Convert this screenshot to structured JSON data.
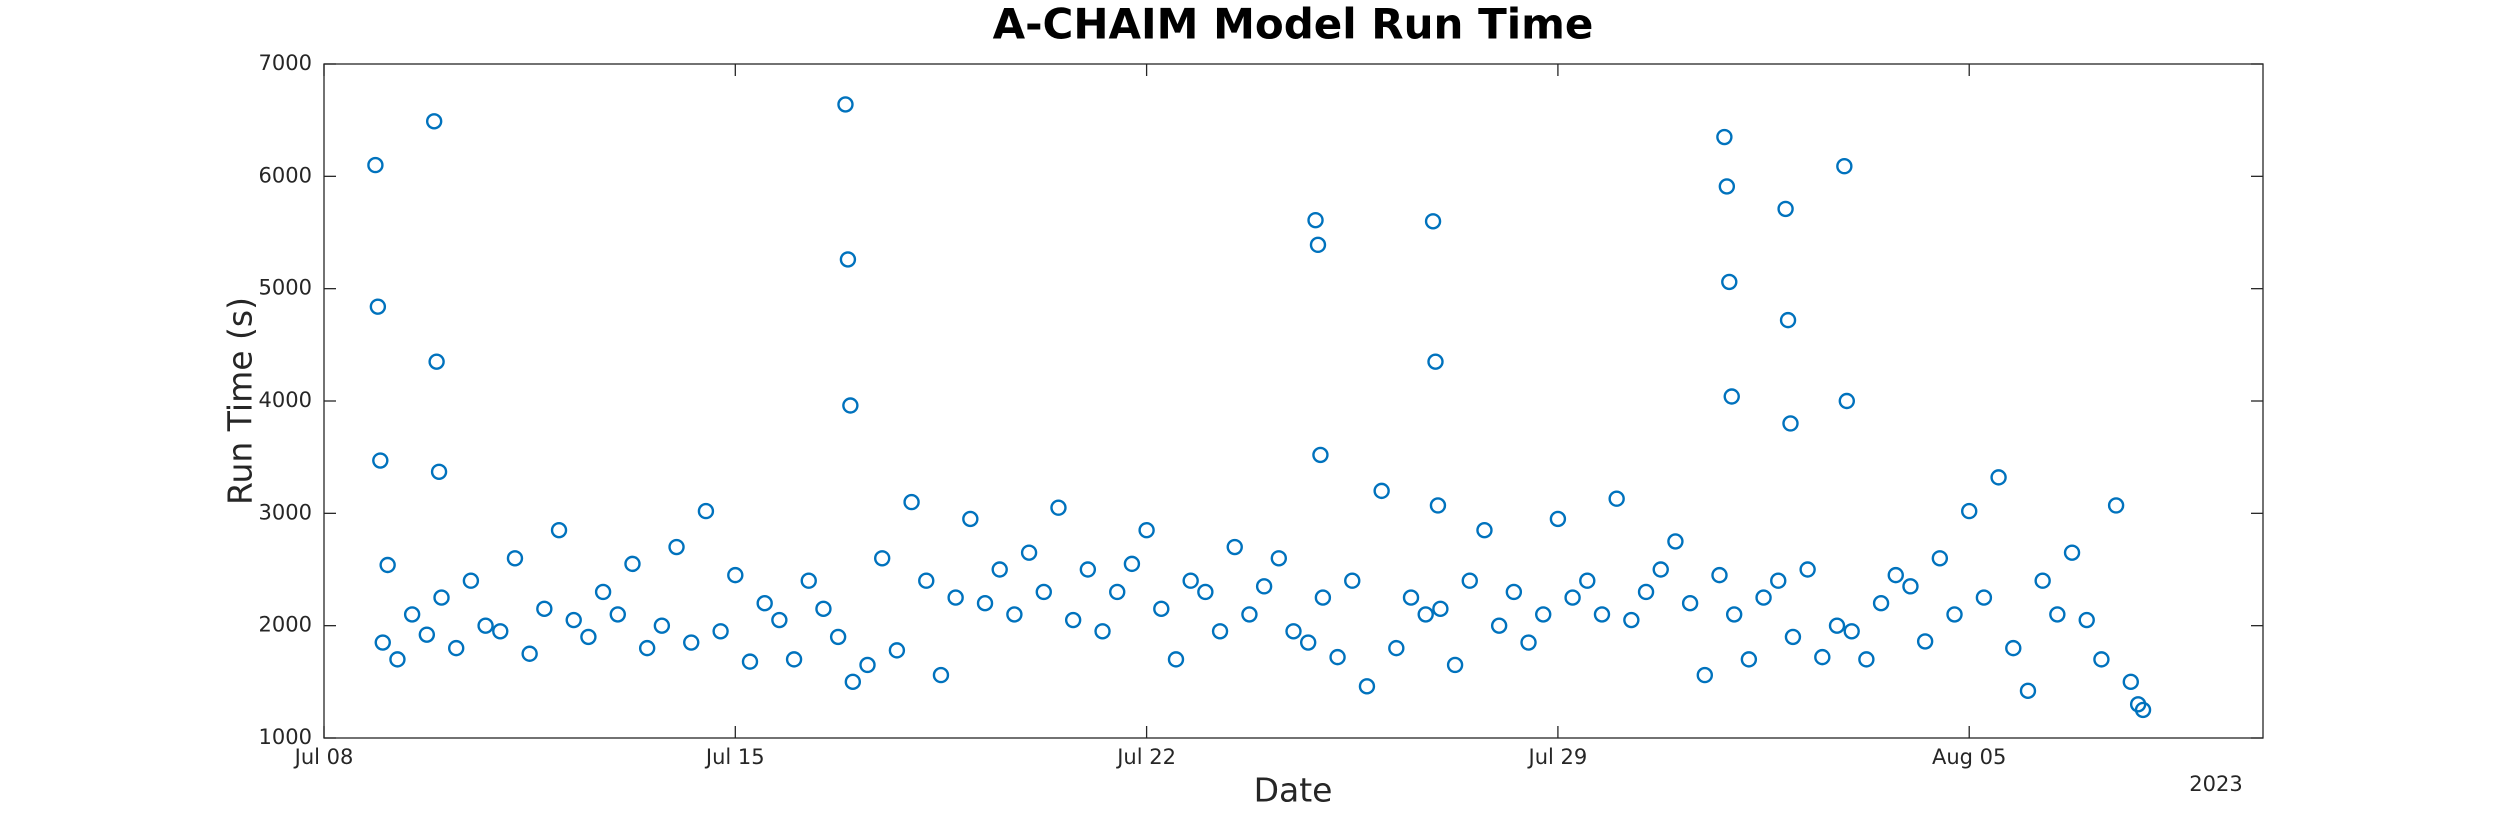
{
  "chart_data": {
    "type": "scatter",
    "title": "A-CHAIM Model Run Time",
    "x_label": "Date",
    "y_label": "Run Time (s)",
    "x_year_label": "2023",
    "color": "#0072BD",
    "grid": false,
    "xlim": [
      "2023-07-08T00:00",
      "2023-08-10T00:00"
    ],
    "xticks": [
      {
        "value": "2023-07-08T00:00",
        "label": "Jul 08"
      },
      {
        "value": "2023-07-15T00:00",
        "label": "Jul 15"
      },
      {
        "value": "2023-07-22T00:00",
        "label": "Jul 22"
      },
      {
        "value": "2023-07-29T00:00",
        "label": "Jul 29"
      },
      {
        "value": "2023-08-05T00:00",
        "label": "Aug 05"
      }
    ],
    "ylim": [
      1000,
      7000
    ],
    "yticks": [
      1000,
      2000,
      3000,
      4000,
      5000,
      6000,
      7000
    ],
    "x": [
      "2023-07-09T00:00",
      "2023-07-09T06:00",
      "2023-07-09T12:00",
      "2023-07-09T18:00",
      "2023-07-10T00:00",
      "2023-07-10T06:00",
      "2023-07-10T12:00",
      "2023-07-10T18:00",
      "2023-07-11T00:00",
      "2023-07-11T06:00",
      "2023-07-11T12:00",
      "2023-07-11T18:00",
      "2023-07-12T00:00",
      "2023-07-12T06:00",
      "2023-07-12T12:00",
      "2023-07-12T18:00",
      "2023-07-13T00:00",
      "2023-07-13T06:00",
      "2023-07-13T12:00",
      "2023-07-13T18:00",
      "2023-07-14T00:00",
      "2023-07-14T06:00",
      "2023-07-14T12:00",
      "2023-07-14T18:00",
      "2023-07-15T00:00",
      "2023-07-15T06:00",
      "2023-07-15T12:00",
      "2023-07-15T18:00",
      "2023-07-16T00:00",
      "2023-07-16T06:00",
      "2023-07-16T12:00",
      "2023-07-16T18:00",
      "2023-07-17T00:00",
      "2023-07-17T06:00",
      "2023-07-17T12:00",
      "2023-07-17T18:00",
      "2023-07-18T00:00",
      "2023-07-18T06:00",
      "2023-07-18T12:00",
      "2023-07-18T18:00",
      "2023-07-19T00:00",
      "2023-07-19T06:00",
      "2023-07-19T12:00",
      "2023-07-19T18:00",
      "2023-07-20T00:00",
      "2023-07-20T06:00",
      "2023-07-20T12:00",
      "2023-07-20T18:00",
      "2023-07-21T00:00",
      "2023-07-21T06:00",
      "2023-07-21T12:00",
      "2023-07-21T18:00",
      "2023-07-22T00:00",
      "2023-07-22T06:00",
      "2023-07-22T12:00",
      "2023-07-22T18:00",
      "2023-07-23T00:00",
      "2023-07-23T06:00",
      "2023-07-23T12:00",
      "2023-07-23T18:00",
      "2023-07-24T00:00",
      "2023-07-24T06:00",
      "2023-07-24T12:00",
      "2023-07-24T18:00",
      "2023-07-25T00:00",
      "2023-07-25T06:00",
      "2023-07-25T12:00",
      "2023-07-25T18:00",
      "2023-07-26T00:00",
      "2023-07-26T06:00",
      "2023-07-26T12:00",
      "2023-07-26T18:00",
      "2023-07-27T00:00",
      "2023-07-27T06:00",
      "2023-07-27T12:00",
      "2023-07-27T18:00",
      "2023-07-28T00:00",
      "2023-07-28T06:00",
      "2023-07-28T12:00",
      "2023-07-28T18:00",
      "2023-07-29T00:00",
      "2023-07-29T06:00",
      "2023-07-29T12:00",
      "2023-07-29T18:00",
      "2023-07-30T00:00",
      "2023-07-30T06:00",
      "2023-07-30T12:00",
      "2023-07-30T18:00",
      "2023-07-31T00:00",
      "2023-07-31T06:00",
      "2023-07-31T12:00",
      "2023-07-31T18:00",
      "2023-08-01T00:00",
      "2023-08-01T06:00",
      "2023-08-01T12:00",
      "2023-08-01T18:00",
      "2023-08-02T00:00",
      "2023-08-02T06:00",
      "2023-08-02T12:00",
      "2023-08-02T18:00",
      "2023-08-03T00:00",
      "2023-08-03T06:00",
      "2023-08-03T12:00",
      "2023-08-03T18:00",
      "2023-08-04T00:00",
      "2023-08-04T06:00",
      "2023-08-04T12:00",
      "2023-08-04T18:00",
      "2023-08-05T00:00",
      "2023-08-05T06:00",
      "2023-08-05T12:00",
      "2023-08-05T18:00",
      "2023-08-06T00:00",
      "2023-08-06T06:00",
      "2023-08-06T12:00",
      "2023-08-06T18:00",
      "2023-08-07T00:00",
      "2023-08-07T06:00",
      "2023-08-07T12:00",
      "2023-08-07T18:00",
      "2023-08-07T21:00",
      "2023-08-07T23:00",
      "2023-07-08T21:00",
      "2023-07-08T22:00",
      "2023-07-08T23:00",
      "2023-07-09T02:00",
      "2023-07-09T21:00",
      "2023-07-09T22:00",
      "2023-07-09T23:00",
      "2023-07-16T21:00",
      "2023-07-16T22:00",
      "2023-07-16T23:00",
      "2023-07-24T21:00",
      "2023-07-24T22:00",
      "2023-07-24T23:00",
      "2023-07-26T21:00",
      "2023-07-26T22:00",
      "2023-07-26T23:00",
      "2023-07-31T20:00",
      "2023-07-31T21:00",
      "2023-07-31T22:00",
      "2023-07-31T23:00",
      "2023-08-01T21:00",
      "2023-08-01T22:00",
      "2023-08-01T23:00",
      "2023-08-02T21:00",
      "2023-08-02T22:00"
    ],
    "values": [
      1850,
      1700,
      2100,
      1920,
      2250,
      1800,
      2400,
      2000,
      1950,
      2600,
      1750,
      2150,
      2850,
      2050,
      1900,
      2300,
      2100,
      2550,
      1800,
      2000,
      2700,
      1850,
      3020,
      1950,
      2450,
      1680,
      2200,
      2050,
      1700,
      2400,
      2150,
      1900,
      1500,
      1650,
      2600,
      1780,
      3100,
      2400,
      1560,
      2250,
      2950,
      2200,
      2500,
      2100,
      2650,
      2300,
      3050,
      2050,
      2500,
      1950,
      2300,
      2550,
      2850,
      2150,
      1700,
      2400,
      2300,
      1950,
      2700,
      2100,
      2350,
      2600,
      1950,
      1850,
      2250,
      1720,
      2400,
      1460,
      3200,
      1800,
      2250,
      2100,
      2150,
      1650,
      2400,
      2850,
      2000,
      2300,
      1850,
      2100,
      2950,
      2250,
      2400,
      2100,
      3130,
      2050,
      2300,
      2500,
      2750,
      2200,
      1560,
      2450,
      2100,
      1700,
      2250,
      2400,
      1900,
      2500,
      1720,
      2000,
      1950,
      1700,
      2200,
      2450,
      2350,
      1860,
      2600,
      2100,
      3020,
      2250,
      3320,
      1800,
      1420,
      2400,
      2100,
      2650,
      2050,
      1700,
      3070,
      1500,
      1300,
      1250,
      6100,
      4840,
      3470,
      2540,
      6490,
      4350,
      3370,
      6640,
      5260,
      3960,
      5610,
      5390,
      3520,
      5600,
      4350,
      3070,
      6350,
      5910,
      5060,
      4040,
      5710,
      4720,
      3800,
      6090,
      4000
    ]
  }
}
